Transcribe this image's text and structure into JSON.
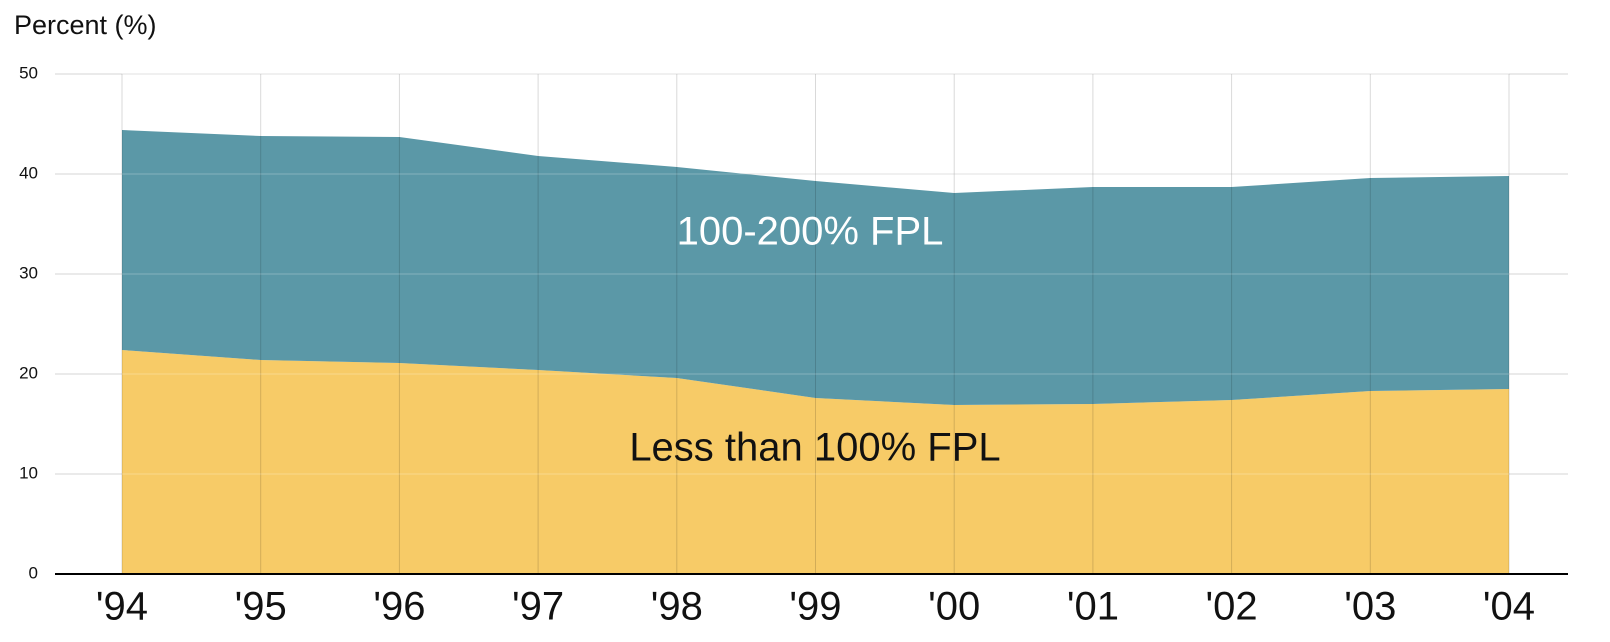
{
  "chart_data": {
    "type": "stacked_area",
    "y_axis_label": "Percent (%)",
    "categories": [
      "'94",
      "'95",
      "'96",
      "'97",
      "'98",
      "'99",
      "'00",
      "'01",
      "'02",
      "'03",
      "'04"
    ],
    "series": [
      {
        "name": "Less than 100% FPL",
        "color": "#f7cb67",
        "values": [
          22.4,
          21.4,
          21.1,
          20.4,
          19.6,
          17.6,
          16.9,
          17.0,
          17.4,
          18.3,
          18.5
        ]
      },
      {
        "name": "100-200% FPL",
        "color": "#5b98a7",
        "values": [
          22.0,
          22.4,
          22.6,
          21.4,
          21.1,
          21.7,
          21.2,
          21.7,
          21.3,
          21.3,
          21.3
        ]
      }
    ],
    "ylim": [
      0,
      50
    ],
    "yticks": [
      0,
      10,
      20,
      30,
      40,
      50
    ],
    "grid": true
  }
}
